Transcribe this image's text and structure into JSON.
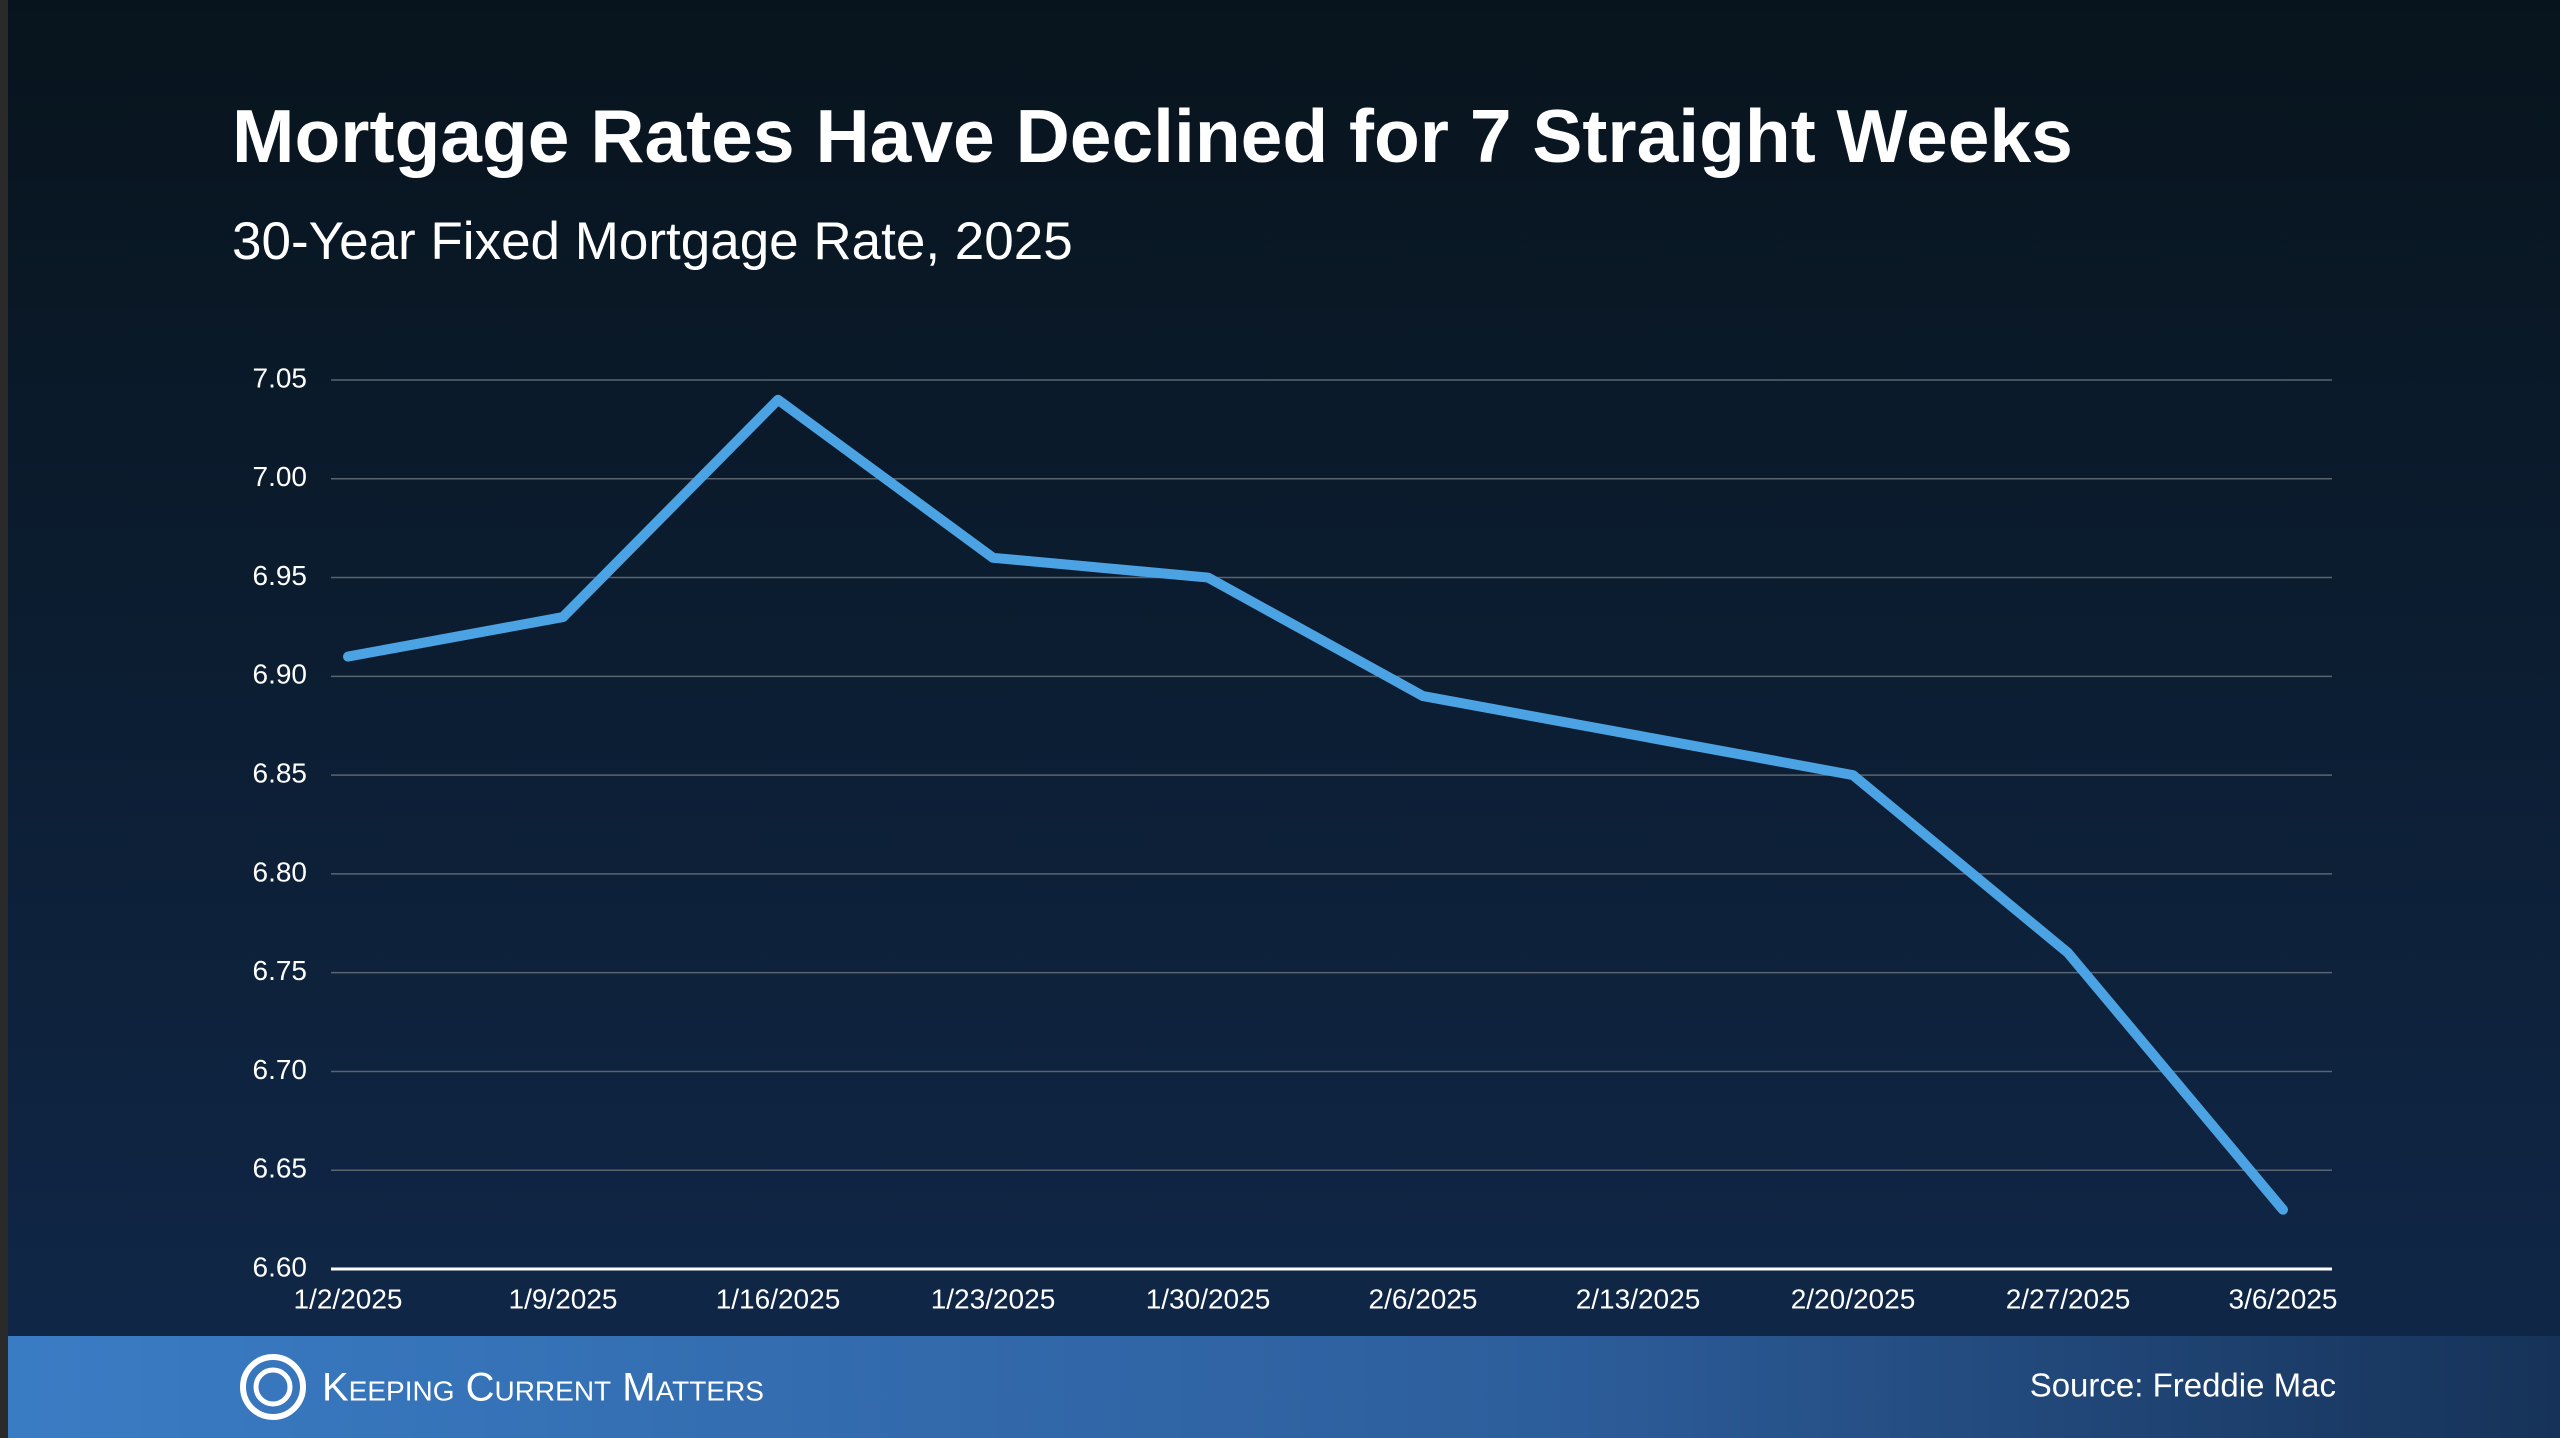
{
  "chart_data": {
    "type": "line",
    "title": "Mortgage Rates Have Declined for 7 Straight Weeks",
    "subtitle": "30-Year Fixed Mortgage Rate, 2025",
    "categories": [
      "1/2/2025",
      "1/9/2025",
      "1/16/2025",
      "1/23/2025",
      "1/30/2025",
      "2/6/2025",
      "2/13/2025",
      "2/20/2025",
      "2/27/2025",
      "3/6/2025"
    ],
    "values": [
      6.91,
      6.93,
      7.04,
      6.96,
      6.95,
      6.89,
      6.87,
      6.85,
      6.76,
      6.63
    ],
    "color": "#4ba3e3",
    "ylim": [
      6.6,
      7.05
    ],
    "yticks": [
      {
        "value": 6.6,
        "label": "6.60"
      },
      6.65,
      {
        "value": 6.7,
        "label": "6.70"
      },
      6.75,
      {
        "value": 6.8,
        "label": "6.80"
      },
      6.85,
      {
        "value": 6.9,
        "label": "6.90"
      },
      6.95,
      {
        "value": 7,
        "label": "7.00"
      },
      7.05
    ],
    "grid": true
  },
  "footer": {
    "brand": "Keeping Current Matters",
    "source": "Source: Freddie Mac"
  }
}
